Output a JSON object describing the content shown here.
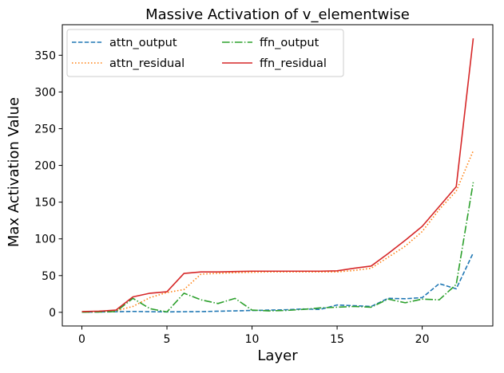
{
  "chart_data": {
    "type": "line",
    "title": "Massive Activation of v_elementwise",
    "xlabel": "Layer",
    "ylabel": "Max Activation Value",
    "xlim": [
      -1.15,
      24.15
    ],
    "ylim": [
      -18.6,
      391.6
    ],
    "xticks": [
      0,
      5,
      10,
      15,
      20
    ],
    "yticks": [
      0,
      50,
      100,
      150,
      200,
      250,
      300,
      350
    ],
    "grid": false,
    "legend_position": "top-left",
    "x": [
      0,
      1,
      2,
      3,
      4,
      5,
      6,
      7,
      8,
      9,
      10,
      11,
      12,
      13,
      14,
      15,
      16,
      17,
      18,
      19,
      20,
      21,
      22,
      23
    ],
    "series": [
      {
        "name": "attn_output",
        "color": "#1f77b4",
        "dash": "dashed",
        "values": [
          0.3,
          0.5,
          0.8,
          1.2,
          0.8,
          0.6,
          0.8,
          1.0,
          1.5,
          2.0,
          2.5,
          3.0,
          3.5,
          4.5,
          4.0,
          10.0,
          9.0,
          8.0,
          19.0,
          18.5,
          20.0,
          39.0,
          32.0,
          81.0
        ]
      },
      {
        "name": "attn_residual",
        "color": "#ff7f0e",
        "dash": "dotted",
        "values": [
          0.5,
          1.0,
          2.0,
          8.0,
          20.0,
          27.0,
          31.0,
          52.0,
          53.0,
          54.0,
          54.5,
          55.0,
          55.0,
          55.0,
          55.0,
          55.0,
          57.0,
          60.0,
          75.0,
          90.0,
          110.0,
          140.0,
          165.0,
          220.0
        ]
      },
      {
        "name": "ffn_output",
        "color": "#2ca02c",
        "dash": "dashdot",
        "values": [
          0.2,
          0.5,
          1.0,
          19.0,
          5.0,
          0.5,
          26.0,
          17.0,
          12.0,
          19.0,
          3.0,
          2.0,
          2.5,
          4.0,
          6.0,
          7.0,
          8.0,
          7.0,
          18.0,
          13.0,
          18.0,
          17.0,
          38.0,
          177.0
        ]
      },
      {
        "name": "ffn_residual",
        "color": "#d62728",
        "dash": "solid",
        "values": [
          1.0,
          1.5,
          3.0,
          21.0,
          26.0,
          28.0,
          53.0,
          55.0,
          55.0,
          55.5,
          56.0,
          56.0,
          56.0,
          56.0,
          56.0,
          56.5,
          60.0,
          63.0,
          80.0,
          98.0,
          117.0,
          144.0,
          171.0,
          373.0
        ]
      }
    ]
  }
}
